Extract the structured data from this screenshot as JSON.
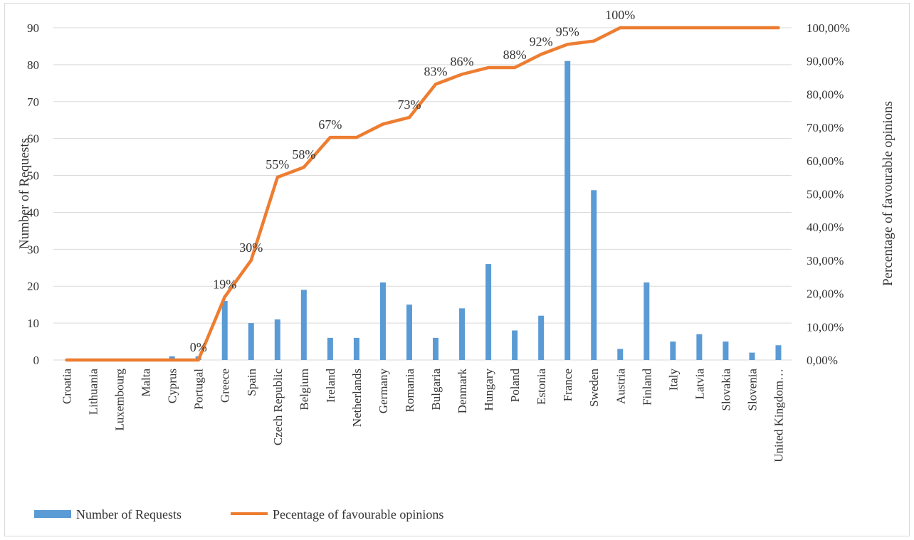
{
  "chart_data": {
    "type": "bar+line",
    "categories": [
      "Croatia",
      "Lithuania",
      "Luxembourg",
      "Malta",
      "Cyprus",
      "Portugal",
      "Greece",
      "Spain",
      "Czech Republic",
      "Belgium",
      "Ireland",
      "Netherlands",
      "Germany",
      "Romania",
      "Bulgaria",
      "Denmark",
      "Hungary",
      "Poland",
      "Estonia",
      "France",
      "Sweden",
      "Austria",
      "Finland",
      "Italy",
      "Latvia",
      "Slovakia",
      "Slovenia",
      "United Kingdom…"
    ],
    "series": [
      {
        "name": "Number of Requests",
        "type": "bar",
        "axis": "left",
        "color": "#5b9bd5",
        "values": [
          0,
          0,
          0,
          0,
          1,
          1,
          16,
          10,
          11,
          19,
          6,
          6,
          21,
          15,
          6,
          14,
          26,
          8,
          12,
          81,
          46,
          3,
          21,
          5,
          7,
          5,
          2,
          4
        ]
      },
      {
        "name": "Pecentage of favourable opinions",
        "type": "line",
        "axis": "right",
        "color": "#ed7d31",
        "values": [
          0,
          0,
          0,
          0,
          0,
          0,
          19,
          30,
          55,
          58,
          67,
          67,
          71,
          73,
          83,
          86,
          88,
          88,
          92,
          95,
          96,
          100,
          100,
          100,
          100,
          100,
          100,
          100
        ],
        "data_labels": [
          {
            "index": 5,
            "text": "0%"
          },
          {
            "index": 6,
            "text": "19%"
          },
          {
            "index": 7,
            "text": "30%"
          },
          {
            "index": 8,
            "text": "55%"
          },
          {
            "index": 9,
            "text": "58%"
          },
          {
            "index": 10,
            "text": "67%"
          },
          {
            "index": 13,
            "text": "73%"
          },
          {
            "index": 14,
            "text": "83%"
          },
          {
            "index": 15,
            "text": "86%"
          },
          {
            "index": 17,
            "text": "88%"
          },
          {
            "index": 18,
            "text": "92%"
          },
          {
            "index": 19,
            "text": "95%"
          },
          {
            "index": 21,
            "text": "100%"
          }
        ]
      }
    ],
    "ylabel": "Number of Requests",
    "y2label": "Percentage of favourable opinions",
    "ylim": [
      0,
      90
    ],
    "yticks": [
      "0",
      "10",
      "20",
      "30",
      "40",
      "50",
      "60",
      "70",
      "80",
      "90"
    ],
    "y2lim": [
      0,
      100
    ],
    "y2ticks": [
      "0,00%",
      "10,00%",
      "20,00%",
      "30,00%",
      "40,00%",
      "50,00%",
      "60,00%",
      "70,00%",
      "80,00%",
      "90,00%",
      "100,00%"
    ],
    "grid": true,
    "legend_position": "bottom-left"
  }
}
